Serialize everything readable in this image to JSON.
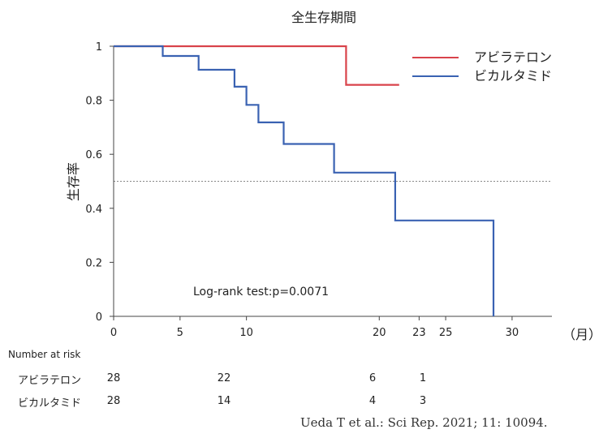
{
  "chart_data": {
    "type": "line",
    "subtype": "kaplan-meier step",
    "title": "全生存期間",
    "ylabel": "生存率",
    "xlabel_unit": "（月）",
    "xlim": [
      0,
      33
    ],
    "ylim": [
      0,
      1
    ],
    "x_ticks": [
      0,
      5,
      10,
      20,
      23,
      25,
      30
    ],
    "y_ticks": [
      0,
      0.2,
      0.4,
      0.6,
      0.8,
      1
    ],
    "y_tick_labels": [
      "0",
      "0.2",
      "0.4",
      "0.6",
      "0.8",
      "1"
    ],
    "reference_line_y": 0.5,
    "annotation": "Log-rank test:p=0.0071",
    "legend_position": "top-right",
    "series": [
      {
        "name": "アビラテロン",
        "color": "#d9434b",
        "steps": [
          [
            0,
            1.0
          ],
          [
            17.5,
            1.0
          ],
          [
            17.5,
            0.857
          ],
          [
            21.5,
            0.857
          ]
        ]
      },
      {
        "name": "ビカルタミド",
        "color": "#3a62b2",
        "steps": [
          [
            0,
            1.0
          ],
          [
            3.7,
            1.0
          ],
          [
            3.7,
            0.964
          ],
          [
            6.4,
            0.964
          ],
          [
            6.4,
            0.913
          ],
          [
            9.1,
            0.913
          ],
          [
            9.1,
            0.85
          ],
          [
            10.0,
            0.85
          ],
          [
            10.0,
            0.783
          ],
          [
            10.9,
            0.783
          ],
          [
            10.9,
            0.718
          ],
          [
            12.8,
            0.718
          ],
          [
            12.8,
            0.638
          ],
          [
            16.6,
            0.638
          ],
          [
            16.6,
            0.532
          ],
          [
            21.2,
            0.532
          ],
          [
            21.2,
            0.355
          ],
          [
            28.6,
            0.355
          ],
          [
            28.6,
            0.0
          ]
        ]
      }
    ]
  },
  "risk_table": {
    "header": "Number at risk",
    "rows": [
      {
        "label": "アビラテロン",
        "values": [
          "28",
          "22",
          "6",
          "1"
        ]
      },
      {
        "label": "ビカルタミド",
        "values": [
          "28",
          "14",
          "4",
          "3"
        ]
      }
    ]
  },
  "caption": "Ueda T et al.: Sci Rep. 2021; 11: 10094."
}
